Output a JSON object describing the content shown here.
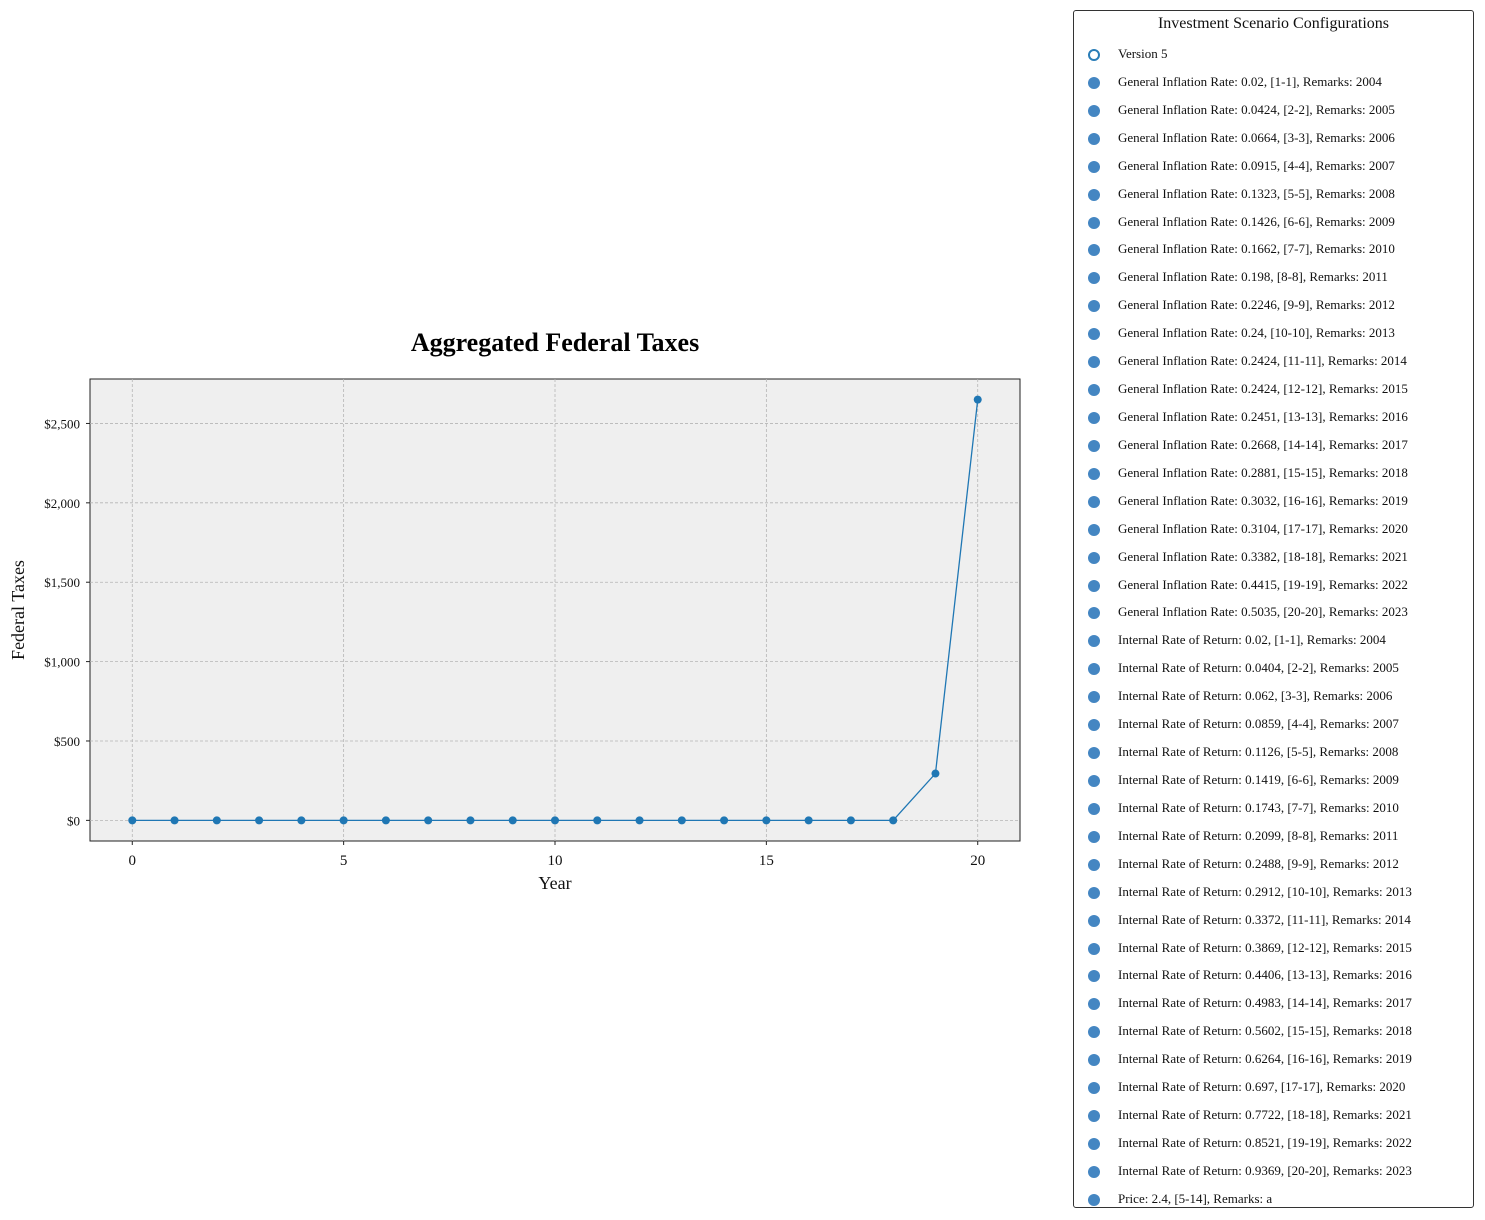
{
  "chart_data": {
    "type": "line",
    "title": "Aggregated Federal Taxes",
    "xlabel": "Year",
    "ylabel": "Federal Taxes",
    "x": [
      0,
      1,
      2,
      3,
      4,
      5,
      6,
      7,
      8,
      9,
      10,
      11,
      12,
      13,
      14,
      15,
      16,
      17,
      18,
      19,
      20
    ],
    "series": [
      {
        "values": [
          0,
          0,
          0,
          0,
          0,
          0,
          0,
          0,
          0,
          0,
          0,
          0,
          0,
          0,
          0,
          0,
          0,
          0,
          0,
          295,
          2650
        ]
      }
    ],
    "xlim": [
      -1,
      21
    ],
    "ylim": [
      -130,
      2780
    ],
    "xticks": [
      0,
      5,
      10,
      15,
      20
    ],
    "yticks": [
      0,
      500,
      1000,
      1500,
      2000,
      2500
    ],
    "ytick_labels": [
      "$0",
      "$500",
      "$1,000",
      "$1,500",
      "$2,000",
      "$2,500"
    ],
    "grid": true,
    "line_color": "#1f77b4",
    "plot_background": "#efefef",
    "legend": {
      "title": "Investment Scenario Configurations",
      "placement": "outside right",
      "entries": [
        "Version 5",
        "General Inflation Rate: 0.02, [1-1], Remarks: 2004",
        "General Inflation Rate: 0.0424, [2-2], Remarks: 2005",
        "General Inflation Rate: 0.0664, [3-3], Remarks: 2006",
        "General Inflation Rate: 0.0915, [4-4], Remarks: 2007",
        "General Inflation Rate: 0.1323, [5-5], Remarks: 2008",
        "General Inflation Rate: 0.1426, [6-6], Remarks: 2009",
        "General Inflation Rate: 0.1662, [7-7], Remarks: 2010",
        "General Inflation Rate: 0.198, [8-8], Remarks: 2011",
        "General Inflation Rate: 0.2246, [9-9], Remarks: 2012",
        "General Inflation Rate: 0.24, [10-10], Remarks: 2013",
        "General Inflation Rate: 0.2424, [11-11], Remarks: 2014",
        "General Inflation Rate: 0.2424, [12-12], Remarks: 2015",
        "General Inflation Rate: 0.2451, [13-13], Remarks: 2016",
        "General Inflation Rate: 0.2668, [14-14], Remarks: 2017",
        "General Inflation Rate: 0.2881, [15-15], Remarks: 2018",
        "General Inflation Rate: 0.3032, [16-16], Remarks: 2019",
        "General Inflation Rate: 0.3104, [17-17], Remarks: 2020",
        "General Inflation Rate: 0.3382, [18-18], Remarks: 2021",
        "General Inflation Rate: 0.4415, [19-19], Remarks: 2022",
        "General Inflation Rate: 0.5035, [20-20], Remarks: 2023",
        "Internal Rate of Return: 0.02, [1-1], Remarks: 2004",
        "Internal Rate of Return: 0.0404, [2-2], Remarks: 2005",
        "Internal Rate of Return: 0.062, [3-3], Remarks: 2006",
        "Internal Rate of Return: 0.0859, [4-4], Remarks: 2007",
        "Internal Rate of Return: 0.1126, [5-5], Remarks: 2008",
        "Internal Rate of Return: 0.1419, [6-6], Remarks: 2009",
        "Internal Rate of Return: 0.1743, [7-7], Remarks: 2010",
        "Internal Rate of Return: 0.2099, [8-8], Remarks: 2011",
        "Internal Rate of Return: 0.2488, [9-9], Remarks: 2012",
        "Internal Rate of Return: 0.2912, [10-10], Remarks: 2013",
        "Internal Rate of Return: 0.3372, [11-11], Remarks: 2014",
        "Internal Rate of Return: 0.3869, [12-12], Remarks: 2015",
        "Internal Rate of Return: 0.4406, [13-13], Remarks: 2016",
        "Internal Rate of Return: 0.4983, [14-14], Remarks: 2017",
        "Internal Rate of Return: 0.5602, [15-15], Remarks: 2018",
        "Internal Rate of Return: 0.6264, [16-16], Remarks: 2019",
        "Internal Rate of Return: 0.697, [17-17], Remarks: 2020",
        "Internal Rate of Return: 0.7722, [18-18], Remarks: 2021",
        "Internal Rate of Return: 0.8521, [19-19], Remarks: 2022",
        "Internal Rate of Return: 0.9369, [20-20], Remarks: 2023",
        "Price: 2.4, [5-14], Remarks: a"
      ]
    }
  }
}
